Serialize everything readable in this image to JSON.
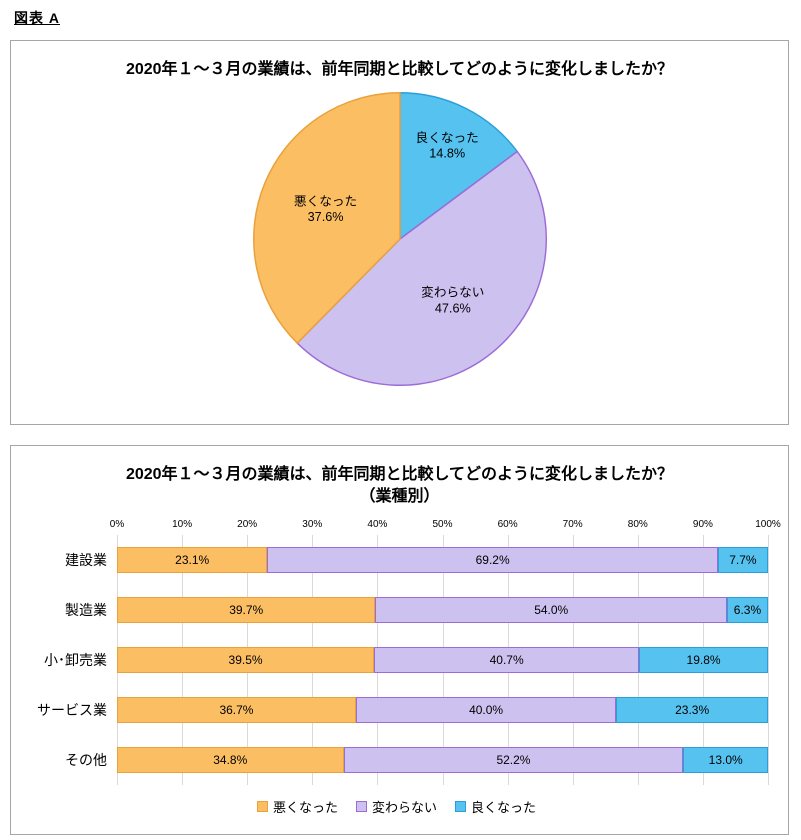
{
  "page": {
    "figure_label": "図表 A"
  },
  "palette": {
    "悪くなった": {
      "fill": "#FBBE63",
      "border": "#E9A13B"
    },
    "変わらない": {
      "fill": "#CDC2EF",
      "border": "#9C6CD6"
    },
    "良くなった": {
      "fill": "#55C2F0",
      "border": "#2C9ED8"
    }
  },
  "chart_data": [
    {
      "type": "pie",
      "title": "2020年１～３月の業績は、前年同期と比較してどのように変化しましたか？",
      "labels": [
        "良くなった",
        "変わらない",
        "悪くなった"
      ],
      "values": [
        14.8,
        47.6,
        37.6
      ],
      "start_angle_deg": 0,
      "direction": "clockwise",
      "legend_position": "none"
    },
    {
      "type": "bar",
      "orientation": "horizontal-stacked",
      "title": "2020年１～３月の業績は、前年同期と比較してどのように変化しましたか？",
      "subtitle": "（業種別）",
      "categories": [
        "建設業",
        "製造業",
        "小･卸売業",
        "サービス業",
        "その他"
      ],
      "series": [
        {
          "name": "悪くなった",
          "values": [
            23.1,
            39.7,
            39.5,
            36.7,
            34.8
          ]
        },
        {
          "name": "変わらない",
          "values": [
            69.2,
            54.0,
            40.7,
            40.0,
            52.2
          ]
        },
        {
          "name": "良くなった",
          "values": [
            7.7,
            6.3,
            19.8,
            23.3,
            13.0
          ]
        }
      ],
      "xlim": [
        0,
        100
      ],
      "x_ticks": [
        "0%",
        "10%",
        "20%",
        "30%",
        "40%",
        "50%",
        "60%",
        "70%",
        "80%",
        "90%",
        "100%"
      ],
      "grid": true,
      "legend_position": "bottom"
    }
  ]
}
